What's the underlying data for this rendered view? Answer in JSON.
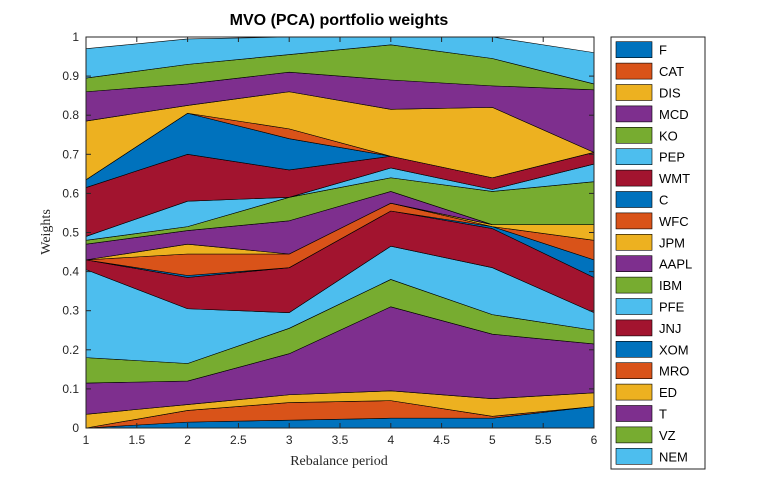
{
  "chart_data": {
    "type": "area",
    "stacked": true,
    "title": "MVO (PCA) portfolio weights",
    "xlabel": "Rebalance period",
    "ylabel": "Weights",
    "x": [
      1,
      2,
      3,
      4,
      5,
      6
    ],
    "xlim": [
      1,
      6
    ],
    "ylim": [
      0,
      1
    ],
    "xticks": [
      "1",
      "1.5",
      "2",
      "2.5",
      "3",
      "3.5",
      "4",
      "4.5",
      "5",
      "5.5",
      "6"
    ],
    "yticks": [
      "0",
      "0.1",
      "0.2",
      "0.3",
      "0.4",
      "0.5",
      "0.6",
      "0.7",
      "0.8",
      "0.9",
      "1"
    ],
    "grid": false,
    "legend_position": "outside-right",
    "series": [
      {
        "name": "F",
        "color": "#0072BD",
        "values": [
          0.0,
          0.015,
          0.02,
          0.025,
          0.025,
          0.055
        ]
      },
      {
        "name": "CAT",
        "color": "#D95319",
        "values": [
          0.0,
          0.03,
          0.045,
          0.045,
          0.005,
          0.0
        ]
      },
      {
        "name": "DIS",
        "color": "#EDB120",
        "values": [
          0.035,
          0.015,
          0.02,
          0.025,
          0.045,
          0.035
        ]
      },
      {
        "name": "MCD",
        "color": "#7E2F8E",
        "values": [
          0.08,
          0.06,
          0.105,
          0.215,
          0.165,
          0.125
        ]
      },
      {
        "name": "KO",
        "color": "#77AC30",
        "values": [
          0.065,
          0.045,
          0.065,
          0.07,
          0.05,
          0.035
        ]
      },
      {
        "name": "PEP",
        "color": "#4DBEEE",
        "values": [
          0.225,
          0.14,
          0.04,
          0.085,
          0.12,
          0.045
        ]
      },
      {
        "name": "WMT",
        "color": "#A2142F",
        "values": [
          0.025,
          0.08,
          0.115,
          0.09,
          0.1,
          0.09
        ]
      },
      {
        "name": "C",
        "color": "#0072BD",
        "values": [
          0.0,
          0.005,
          0.0,
          0.0,
          0.005,
          0.045
        ]
      },
      {
        "name": "WFC",
        "color": "#D95319",
        "values": [
          0.0,
          0.055,
          0.035,
          0.02,
          0.0,
          0.05
        ]
      },
      {
        "name": "JPM",
        "color": "#EDB120",
        "values": [
          0.0,
          0.025,
          0.0,
          0.0,
          0.005,
          0.04
        ]
      },
      {
        "name": "AAPL",
        "color": "#7E2F8E",
        "values": [
          0.04,
          0.035,
          0.085,
          0.03,
          0.0,
          0.0
        ]
      },
      {
        "name": "IBM",
        "color": "#77AC30",
        "values": [
          0.01,
          0.01,
          0.06,
          0.035,
          0.085,
          0.11
        ]
      },
      {
        "name": "PFE",
        "color": "#4DBEEE",
        "values": [
          0.01,
          0.065,
          0.0,
          0.025,
          0.005,
          0.045
        ]
      },
      {
        "name": "JNJ",
        "color": "#A2142F",
        "values": [
          0.125,
          0.12,
          0.07,
          0.03,
          0.03,
          0.03
        ]
      },
      {
        "name": "XOM",
        "color": "#0072BD",
        "values": [
          0.02,
          0.105,
          0.08,
          0.0,
          0.0,
          0.0
        ]
      },
      {
        "name": "MRO",
        "color": "#D95319",
        "values": [
          0.0,
          0.0,
          0.025,
          0.0,
          0.0,
          0.0
        ]
      },
      {
        "name": "ED",
        "color": "#EDB120",
        "values": [
          0.15,
          0.02,
          0.095,
          0.12,
          0.18,
          0.0
        ]
      },
      {
        "name": "T",
        "color": "#7E2F8E",
        "values": [
          0.075,
          0.055,
          0.05,
          0.075,
          0.055,
          0.16
        ]
      },
      {
        "name": "VZ",
        "color": "#77AC30",
        "values": [
          0.035,
          0.05,
          0.045,
          0.09,
          0.07,
          0.015
        ]
      },
      {
        "name": "NEM",
        "color": "#4DBEEE",
        "values": [
          0.075,
          0.065,
          0.045,
          0.02,
          0.055,
          0.08
        ]
      }
    ]
  }
}
